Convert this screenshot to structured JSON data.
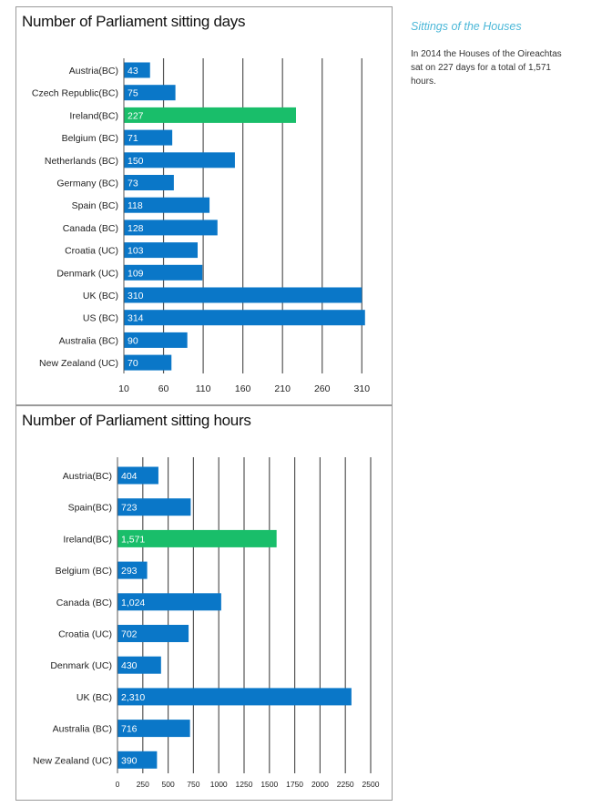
{
  "colors": {
    "bar": "#0a77c8",
    "highlight": "#19be6a",
    "grid": "#555555"
  },
  "sidebar": {
    "title": "Sittings of the Houses",
    "text": "In 2014 the Houses of the Oireachtas sat on 227 days for a total of 1,571 hours."
  },
  "chart_data": [
    {
      "type": "bar",
      "orientation": "horizontal",
      "title": "Number of Parliament sitting days",
      "categories": [
        "Austria(BC)",
        "Czech Republic(BC)",
        "Ireland(BC)",
        "Belgium (BC)",
        "Netherlands (BC)",
        "Germany (BC)",
        "Spain (BC)",
        "Canada (BC)",
        "Croatia (UC)",
        "Denmark (UC)",
        "UK (BC)",
        "US (BC)",
        "Australia (BC)",
        "New Zealand (UC)"
      ],
      "values": [
        43,
        75,
        227,
        71,
        150,
        73,
        118,
        128,
        103,
        109,
        310,
        314,
        90,
        70
      ],
      "value_labels": [
        "43",
        "75",
        "227",
        "71",
        "150",
        "73",
        "118",
        "128",
        "103",
        "109",
        "310",
        "314",
        "90",
        "70"
      ],
      "highlight": "Ireland(BC)",
      "xlim": [
        10,
        320
      ],
      "xticks": [
        10,
        60,
        110,
        160,
        210,
        260,
        310
      ],
      "xtick_labels": [
        "10",
        "60",
        "110",
        "160",
        "210",
        "260",
        "310"
      ]
    },
    {
      "type": "bar",
      "orientation": "horizontal",
      "title": "Number of Parliament sitting hours",
      "categories": [
        "Austria(BC)",
        "Spain(BC)",
        "Ireland(BC)",
        "Belgium (BC)",
        "Canada (BC)",
        "Croatia (UC)",
        "Denmark (UC)",
        "UK (BC)",
        "Australia (BC)",
        "New Zealand (UC)"
      ],
      "values": [
        404,
        723,
        1571,
        293,
        1024,
        702,
        430,
        2310,
        716,
        390
      ],
      "value_labels": [
        "404",
        "723",
        "1,571",
        "293",
        "1,024",
        "702",
        "430",
        "2,310",
        "716",
        "390"
      ],
      "highlight": "Ireland(BC)",
      "xlim": [
        0,
        2500
      ],
      "xticks": [
        0,
        250,
        500,
        750,
        1000,
        1250,
        1500,
        1750,
        2000,
        2250,
        2500
      ],
      "xtick_labels": [
        "0",
        "250",
        "500",
        "750",
        "1000",
        "1250",
        "1500",
        "1750",
        "2000",
        "2250",
        "2500"
      ]
    }
  ]
}
